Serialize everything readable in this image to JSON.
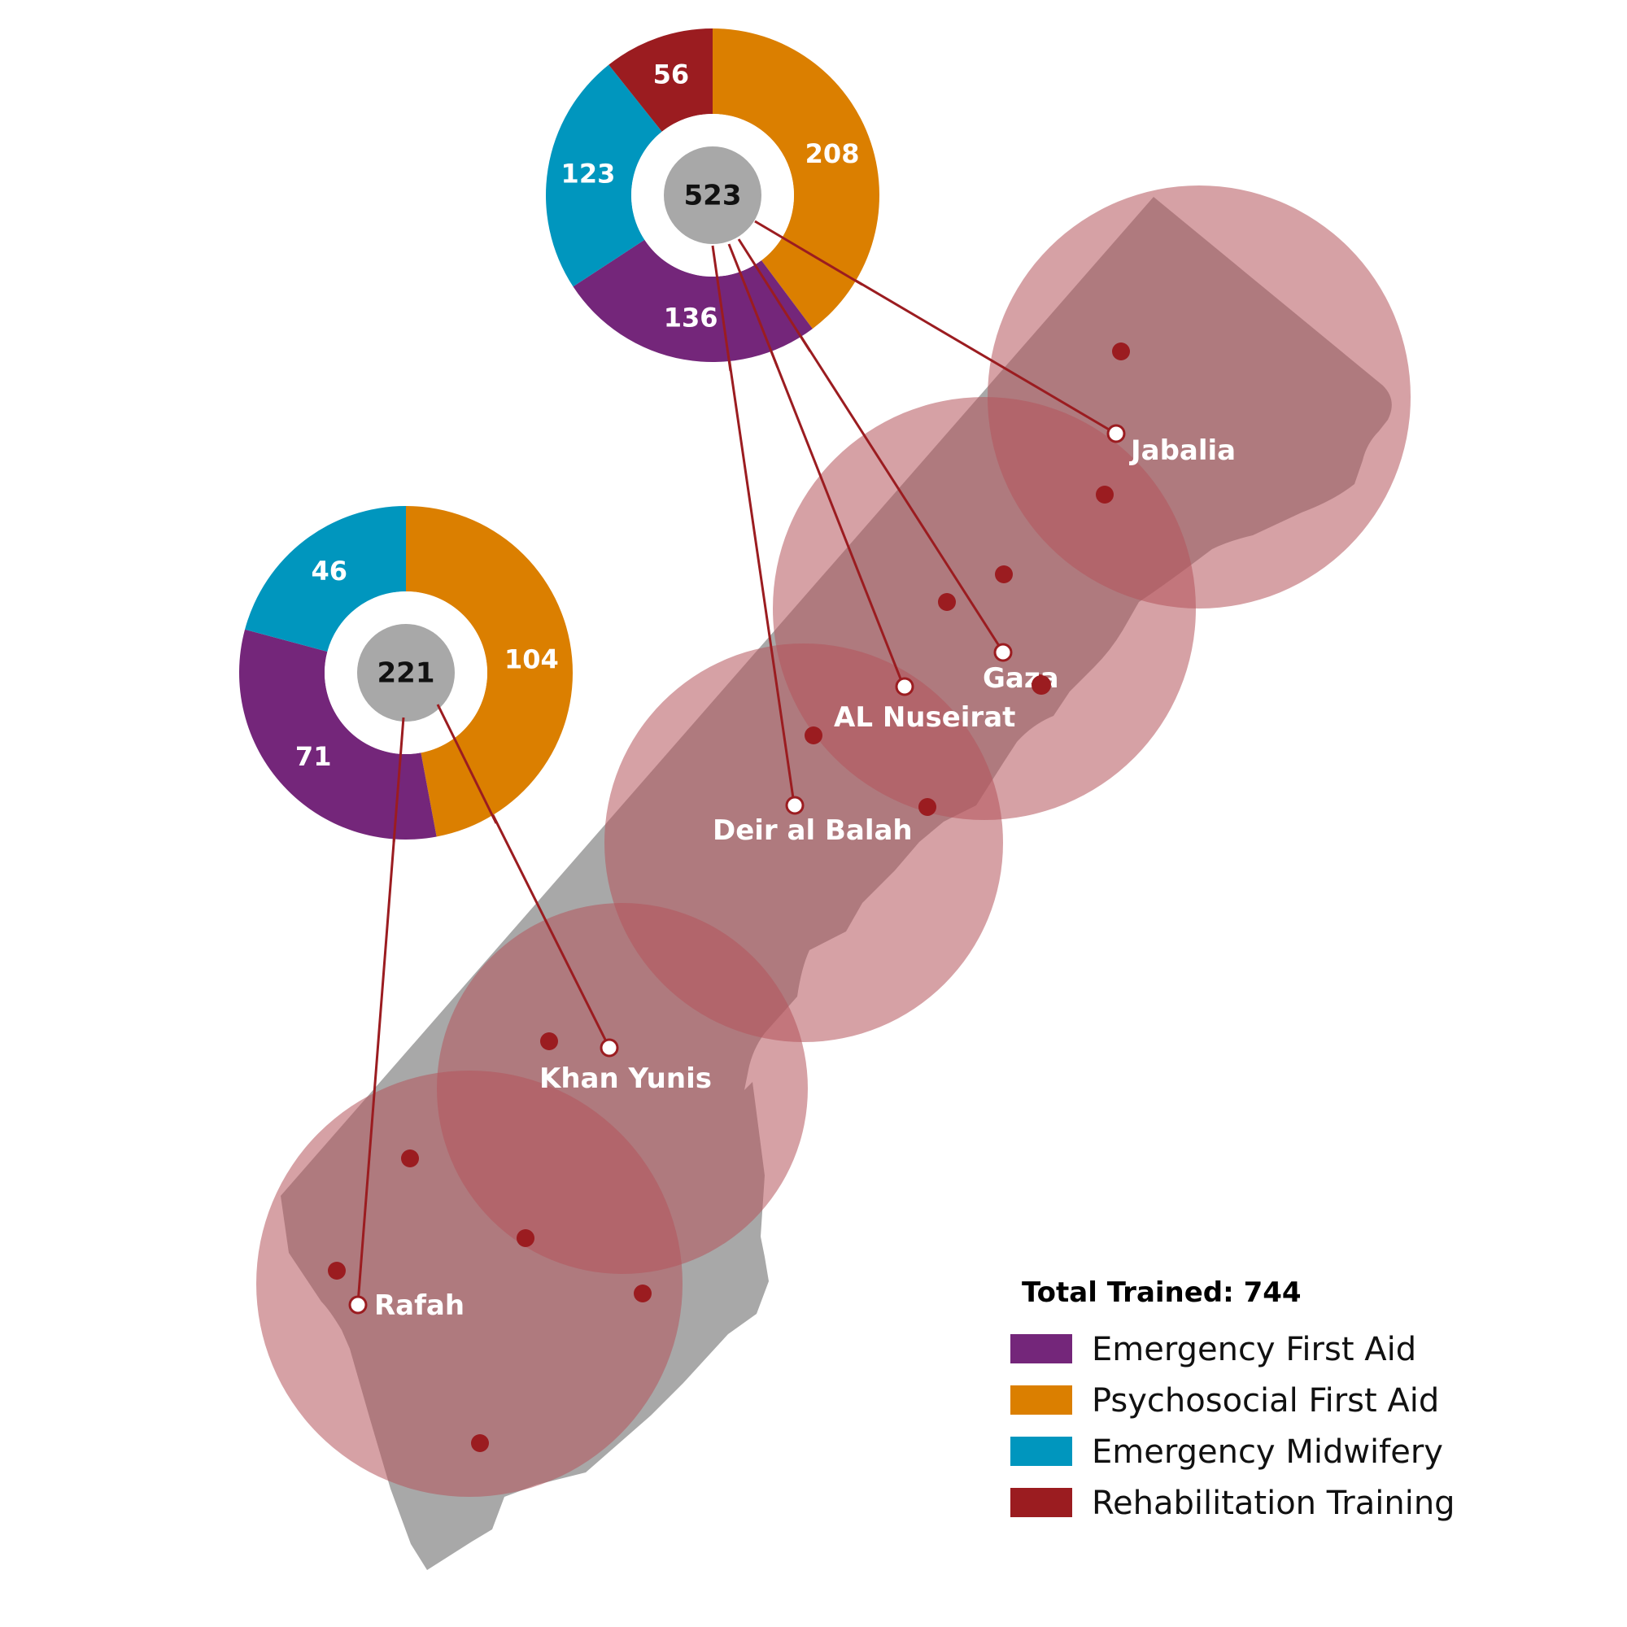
{
  "colors": {
    "emergency_first_aid": "#74267a",
    "psychosocial_first_aid": "#db7f00",
    "emergency_midwifery": "#0096be",
    "rehabilitation_training": "#9b1c20",
    "region_fill": "#b5545b",
    "territory_fill": "#a8a8a8",
    "center_fill": "#a8a8a8",
    "connector": "#9b1c20",
    "location_dot": "#9b1c20"
  },
  "locations": [
    {
      "id": "jabalia",
      "label": "Jabalia"
    },
    {
      "id": "gaza",
      "label": "Gaza"
    },
    {
      "id": "al-nuseirat",
      "label": "AL Nuseirat"
    },
    {
      "id": "deir-al-balah",
      "label": "Deir al Balah"
    },
    {
      "id": "khan-yunis",
      "label": "Khan Yunis"
    },
    {
      "id": "rafah",
      "label": "Rafah"
    }
  ],
  "chart_data": [
    {
      "type": "pie",
      "group": "north",
      "total": "523",
      "slices": [
        {
          "name": "Psychosocial First Aid",
          "value": 208
        },
        {
          "name": "Emergency First Aid",
          "value": 136
        },
        {
          "name": "Emergency Midwifery",
          "value": 123
        },
        {
          "name": "Rehabilitation Training",
          "value": 56
        }
      ]
    },
    {
      "type": "pie",
      "group": "south",
      "total": "221",
      "slices": [
        {
          "name": "Psychosocial First Aid",
          "value": 104
        },
        {
          "name": "Emergency First Aid",
          "value": 71
        },
        {
          "name": "Emergency Midwifery",
          "value": 46
        }
      ]
    }
  ],
  "legend": {
    "title": "Total Trained:  744",
    "items": [
      {
        "label": "Emergency First Aid",
        "color": "#74267a"
      },
      {
        "label": "Psychosocial First Aid",
        "color": "#db7f00"
      },
      {
        "label": "Emergency Midwifery",
        "color": "#0096be"
      },
      {
        "label": "Rehabilitation Training",
        "color": "#9b1c20"
      }
    ]
  }
}
